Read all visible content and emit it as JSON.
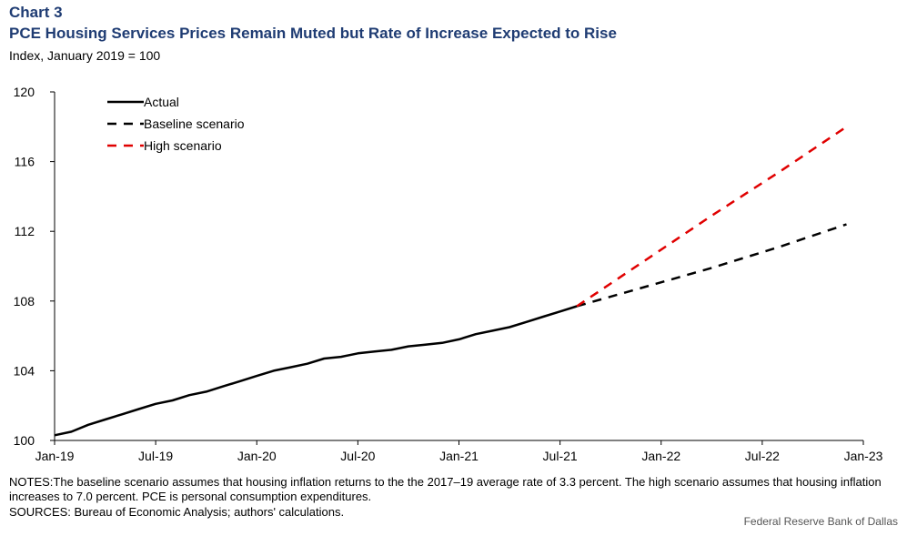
{
  "header": {
    "chart_number": "Chart 3",
    "title": "PCE Housing Services Prices Remain Muted but Rate of Increase Expected to Rise",
    "subtitle": "Index, January 2019 = 100"
  },
  "footer": {
    "notes": "NOTES:The baseline scenario assumes that housing inflation returns to the the 2017–19 average rate of 3.3 percent. The high scenario assumes that housing inflation increases to 7.0 percent. PCE is personal consumption expenditures.",
    "sources": "SOURCES: Bureau of Economic Analysis; authors' calculations.",
    "credit": "Federal Reserve Bank of Dallas"
  },
  "colors": {
    "actual": "#000000",
    "baseline": "#000000",
    "high": "#e00000",
    "title": "#1f3c73"
  },
  "chart_data": {
    "type": "line",
    "title": "PCE Housing Services Prices Remain Muted but Rate of Increase Expected to Rise",
    "ylabel": "Index, January 2019 = 100",
    "xlabel": "",
    "x_unit": "months since Jan-19",
    "xlim": [
      0,
      48
    ],
    "ylim": [
      100,
      120
    ],
    "y_ticks": [
      100,
      104,
      108,
      112,
      116,
      120
    ],
    "x_ticks": [
      {
        "m": 0,
        "label": "Jan-19"
      },
      {
        "m": 6,
        "label": "Jul-19"
      },
      {
        "m": 12,
        "label": "Jan-20"
      },
      {
        "m": 18,
        "label": "Jul-20"
      },
      {
        "m": 24,
        "label": "Jan-21"
      },
      {
        "m": 30,
        "label": "Jul-21"
      },
      {
        "m": 36,
        "label": "Jan-22"
      },
      {
        "m": 42,
        "label": "Jul-22"
      },
      {
        "m": 48,
        "label": "Jan-23"
      }
    ],
    "legend_position": "top-left",
    "series": [
      {
        "name": "Actual",
        "style": "solid",
        "x": [
          0,
          1,
          2,
          3,
          4,
          5,
          6,
          7,
          8,
          9,
          10,
          11,
          12,
          13,
          14,
          15,
          16,
          17,
          18,
          19,
          20,
          21,
          22,
          23,
          24,
          25,
          26,
          27,
          28,
          29,
          30,
          31
        ],
        "values": [
          100.3,
          100.5,
          100.9,
          101.2,
          101.5,
          101.8,
          102.1,
          102.3,
          102.6,
          102.8,
          103.1,
          103.4,
          103.7,
          104.0,
          104.2,
          104.4,
          104.7,
          104.8,
          105.0,
          105.1,
          105.2,
          105.4,
          105.5,
          105.6,
          105.8,
          106.1,
          106.3,
          106.5,
          106.8,
          107.1,
          107.4,
          107.7
        ]
      },
      {
        "name": "Baseline scenario",
        "style": "dashed",
        "x": [
          31,
          35,
          39,
          43,
          47
        ],
        "values": [
          107.7,
          108.8,
          109.9,
          111.1,
          112.4
        ]
      },
      {
        "name": "High scenario",
        "style": "dashed",
        "x": [
          31,
          35,
          39,
          43,
          47
        ],
        "values": [
          107.7,
          110.3,
          112.9,
          115.4,
          118.0
        ]
      }
    ]
  }
}
